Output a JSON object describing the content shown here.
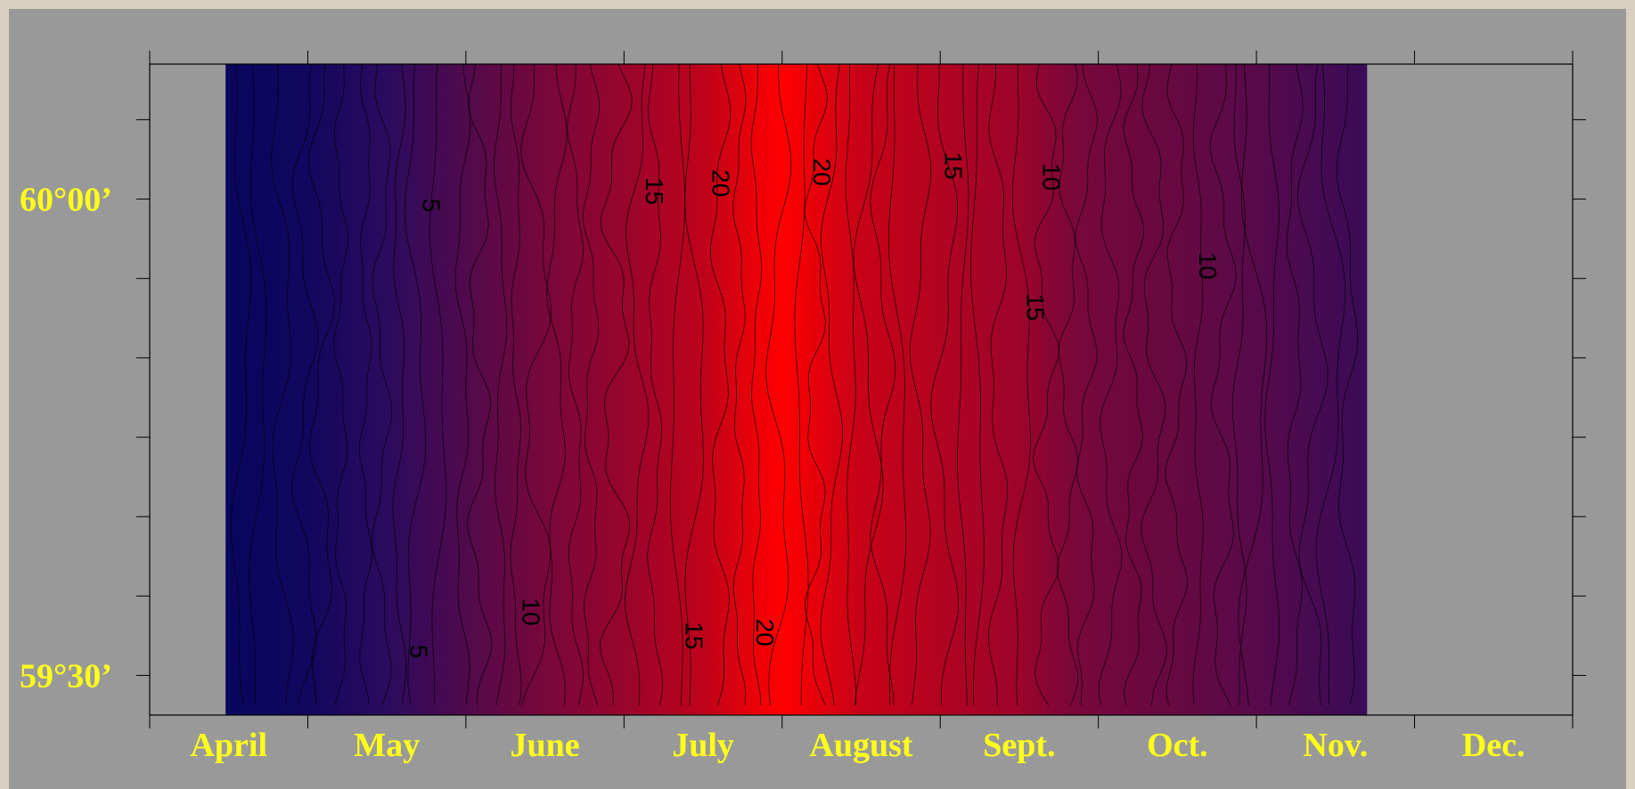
{
  "chart_data": {
    "type": "heatmap",
    "title": "",
    "xlabel": "",
    "ylabel": "",
    "x_tick_labels": [
      "April",
      "May",
      "June",
      "July",
      "August",
      "Sept.",
      "Oct.",
      "Nov.",
      "Dec."
    ],
    "y_tick_labels": [
      "60°00’",
      "59°30’"
    ],
    "y_tick_values_minutes": [
      60,
      30
    ],
    "ylim_minutes": [
      27.5,
      68.5
    ],
    "data_month_range": [
      0.48,
      7.7
    ],
    "contour_levels": [
      5,
      10,
      15,
      20
    ],
    "contour_labels": [
      {
        "text": "5",
        "month": 1.77,
        "lat_min": 59.6
      },
      {
        "text": "15",
        "month": 3.18,
        "lat_min": 60.5
      },
      {
        "text": "20",
        "month": 3.6,
        "lat_min": 61.0
      },
      {
        "text": "20",
        "month": 4.24,
        "lat_min": 61.7
      },
      {
        "text": "15",
        "month": 5.07,
        "lat_min": 62.1
      },
      {
        "text": "10",
        "month": 5.69,
        "lat_min": 61.4
      },
      {
        "text": "10",
        "month": 6.68,
        "lat_min": 55.8
      },
      {
        "text": "15",
        "month": 5.59,
        "lat_min": 53.2
      },
      {
        "text": "10",
        "month": 2.4,
        "lat_min": 34.0
      },
      {
        "text": "5",
        "month": 1.69,
        "lat_min": 31.5
      },
      {
        "text": "15",
        "month": 3.43,
        "lat_min": 32.5
      },
      {
        "text": "20",
        "month": 3.88,
        "lat_min": 32.7
      }
    ],
    "temperature_profile": {
      "month": [
        0.48,
        1.0,
        1.5,
        2.0,
        2.5,
        3.0,
        3.5,
        3.8,
        4.0,
        4.2,
        4.5,
        5.0,
        5.5,
        5.8,
        6.0,
        6.5,
        7.0,
        7.5,
        7.7
      ],
      "value": [
        0.5,
        1.5,
        4.5,
        8.0,
        11.5,
        14.5,
        18.0,
        20.5,
        22.0,
        20.5,
        18.5,
        17.0,
        15.0,
        12.0,
        11.0,
        10.0,
        8.5,
        6.5,
        6.0
      ]
    },
    "colormap": [
      "#05055e",
      "#2a0b5e",
      "#5a0a48",
      "#8a0632",
      "#b8021e",
      "#ff0000"
    ],
    "colormap_range": [
      0,
      22
    ],
    "background_color": "#999999",
    "label_color": "#ffff1a"
  }
}
